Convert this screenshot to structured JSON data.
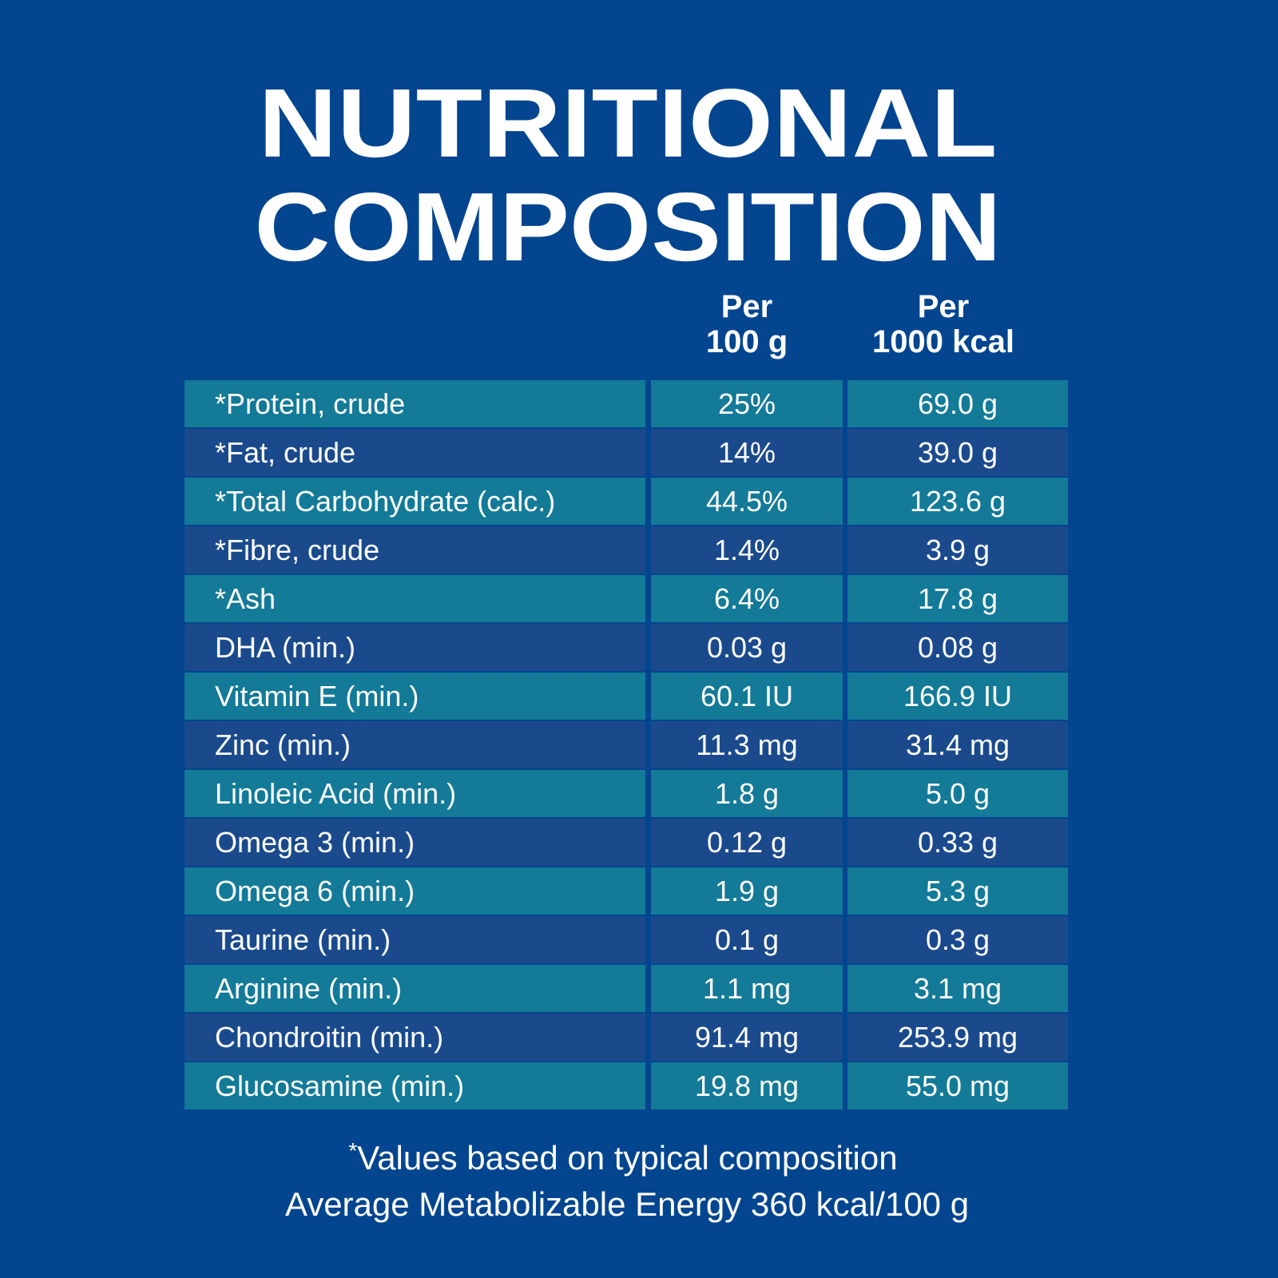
{
  "title": {
    "lines": [
      "NUTRITIONAL",
      "COMPOSITION"
    ]
  },
  "table": {
    "headers": [
      [
        "Per",
        "100 g"
      ],
      [
        "Per",
        "1000 kcal"
      ]
    ],
    "rows": [
      [
        "*Protein, crude",
        "25%",
        "69.0 g"
      ],
      [
        "*Fat, crude",
        "14%",
        "39.0 g"
      ],
      [
        "*Total Carbohydrate (calc.)",
        "44.5%",
        "123.6 g"
      ],
      [
        "*Fibre, crude",
        "1.4%",
        "3.9 g"
      ],
      [
        "*Ash",
        "6.4%",
        "17.8 g"
      ],
      [
        "DHA (min.)",
        "0.03 g",
        "0.08 g"
      ],
      [
        "Vitamin E (min.)",
        "60.1 IU",
        "166.9 IU"
      ],
      [
        "Zinc (min.)",
        "11.3 mg",
        "31.4 mg"
      ],
      [
        "Linoleic Acid (min.)",
        "1.8 g",
        "5.0 g"
      ],
      [
        "Omega 3 (min.)",
        "0.12 g",
        "0.33 g"
      ],
      [
        "Omega 6 (min.)",
        "1.9 g",
        "5.3 g"
      ],
      [
        "Taurine (min.)",
        "0.1 g",
        "0.3 g"
      ],
      [
        "Arginine (min.)",
        "1.1 mg",
        "3.1 mg"
      ],
      [
        "Chondroitin (min.)",
        "91.4 mg",
        "253.9 mg"
      ],
      [
        "Glucosamine (min.)",
        "19.8 mg",
        "55.0 mg"
      ]
    ]
  },
  "footnote": {
    "mark": "*",
    "lines": [
      "Values based on typical composition",
      "Average Metabolizable Energy 360 kcal/100 g"
    ]
  }
}
